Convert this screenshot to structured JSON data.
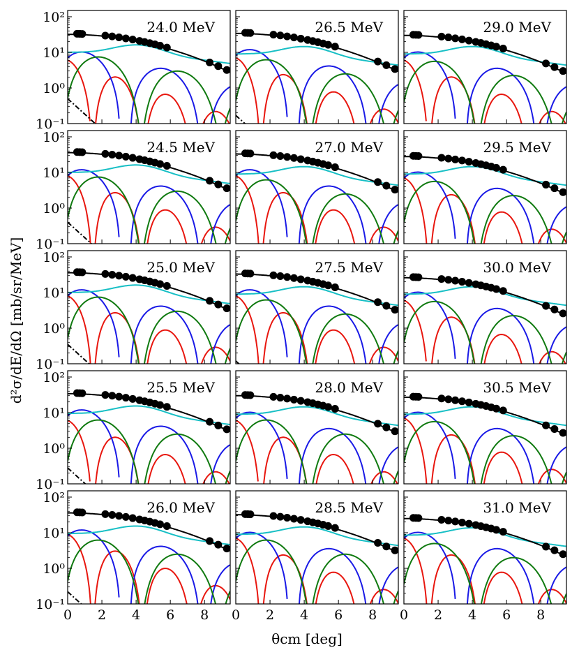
{
  "figure": {
    "ylabel": "d²σ/dE/dΩ [mb/sr/MeV]",
    "xlabel": "θcm [deg]"
  },
  "chart_data": {
    "type": "line",
    "panel_grid": {
      "rows": 5,
      "cols": 3
    },
    "x_axis": {
      "range": [
        0,
        9.5
      ],
      "ticks": [
        0,
        2,
        4,
        6,
        8
      ],
      "tick_labels": [
        "0",
        "2",
        "4",
        "6",
        "8"
      ]
    },
    "y_axis": {
      "scale": "log",
      "range": [
        0.1,
        150
      ],
      "ticks": [
        0.1,
        1,
        10,
        100
      ],
      "tick_labels": [
        "10⁻¹",
        "10⁰",
        "10¹",
        "10²"
      ]
    },
    "series_colors": {
      "total": "#000000",
      "L0": "#e8170f",
      "L1": "#1a1ae6",
      "L2": "#107a10",
      "L3": "#17bfc5",
      "dashdot": "#000000",
      "data_points": "#000000"
    },
    "panels": [
      {
        "label": "24.0 MeV",
        "a_total": 32,
        "a_cyan": 10,
        "a_green": 6,
        "a_blue": 6,
        "a_red": 6,
        "a_dash": 0.5
      },
      {
        "label": "26.5 MeV",
        "a_total": 34,
        "a_cyan": 9,
        "a_green": 5,
        "a_blue": 7,
        "a_red": 7,
        "a_dash": 0.17
      },
      {
        "label": "29.0 MeV",
        "a_total": 30,
        "a_cyan": 9,
        "a_green": 4.5,
        "a_blue": 6,
        "a_red": 6,
        "a_dash": 0
      },
      {
        "label": "24.5 MeV",
        "a_total": 36,
        "a_cyan": 10,
        "a_green": 6,
        "a_blue": 7,
        "a_red": 8,
        "a_dash": 0.4
      },
      {
        "label": "27.0 MeV",
        "a_total": 33,
        "a_cyan": 9,
        "a_green": 5,
        "a_blue": 7,
        "a_red": 8,
        "a_dash": 0
      },
      {
        "label": "29.5 MeV",
        "a_total": 28,
        "a_cyan": 9,
        "a_green": 4.5,
        "a_blue": 6,
        "a_red": 7,
        "a_dash": 0
      },
      {
        "label": "25.0 MeV",
        "a_total": 36,
        "a_cyan": 10,
        "a_green": 6,
        "a_blue": 7,
        "a_red": 8,
        "a_dash": 0.35
      },
      {
        "label": "27.5 MeV",
        "a_total": 33,
        "a_cyan": 9,
        "a_green": 5,
        "a_blue": 7,
        "a_red": 8,
        "a_dash": 0.12
      },
      {
        "label": "30.0 MeV",
        "a_total": 26,
        "a_cyan": 9,
        "a_green": 4.5,
        "a_blue": 6,
        "a_red": 6,
        "a_dash": 0
      },
      {
        "label": "25.5 MeV",
        "a_total": 34,
        "a_cyan": 9.5,
        "a_green": 5,
        "a_blue": 7,
        "a_red": 6,
        "a_dash": 0.28
      },
      {
        "label": "28.0 MeV",
        "a_total": 30,
        "a_cyan": 9,
        "a_green": 5,
        "a_blue": 6,
        "a_red": 6,
        "a_dash": 0.1
      },
      {
        "label": "30.5 MeV",
        "a_total": 27,
        "a_cyan": 9,
        "a_green": 4.5,
        "a_blue": 6,
        "a_red": 7,
        "a_dash": 0
      },
      {
        "label": "26.0 MeV",
        "a_total": 36,
        "a_cyan": 9.5,
        "a_green": 5,
        "a_blue": 7,
        "a_red": 9,
        "a_dash": 0.22
      },
      {
        "label": "28.5 MeV",
        "a_total": 32,
        "a_cyan": 9,
        "a_green": 5,
        "a_blue": 6,
        "a_red": 7,
        "a_dash": 0
      },
      {
        "label": "31.0 MeV",
        "a_total": 25,
        "a_cyan": 8.5,
        "a_green": 4,
        "a_blue": 6,
        "a_red": 7,
        "a_dash": 0
      }
    ]
  }
}
